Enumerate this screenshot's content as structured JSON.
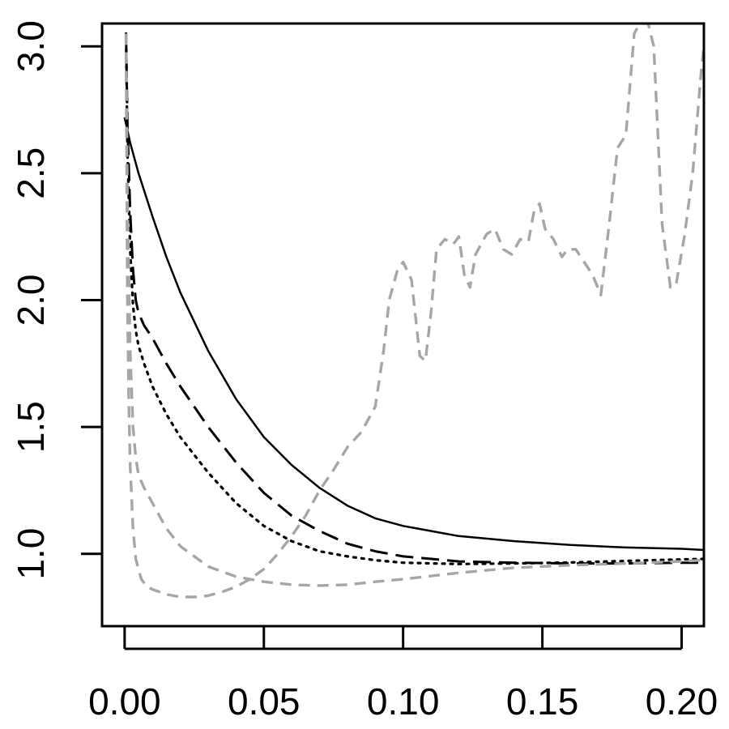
{
  "chart_data": {
    "type": "line",
    "title": "",
    "xlabel": "",
    "ylabel": "",
    "xlim": [
      -0.0081,
      0.208
    ],
    "ylim": [
      0.715,
      3.09
    ],
    "grid": false,
    "legend": "none",
    "x_ticks": [
      0.0,
      0.05,
      0.1,
      0.15,
      0.2
    ],
    "x_tick_labels": [
      "0.00",
      "0.05",
      "0.10",
      "0.15",
      "0.20"
    ],
    "y_ticks": [
      1.0,
      1.5,
      2.0,
      2.5,
      3.0
    ],
    "y_tick_labels": [
      "1.0",
      "1.5",
      "2.0",
      "2.5",
      "3.0"
    ],
    "series": [
      {
        "style": "solid",
        "color": "#000000",
        "x": [
          0.0,
          0.002,
          0.005,
          0.01,
          0.015,
          0.02,
          0.03,
          0.04,
          0.05,
          0.06,
          0.07,
          0.08,
          0.09,
          0.1,
          0.12,
          0.14,
          0.16,
          0.18,
          0.2,
          0.208
        ],
        "y": [
          2.72,
          2.62,
          2.5,
          2.33,
          2.17,
          2.03,
          1.8,
          1.61,
          1.46,
          1.35,
          1.26,
          1.19,
          1.14,
          1.11,
          1.07,
          1.05,
          1.035,
          1.025,
          1.02,
          1.015
        ]
      },
      {
        "style": "longdash",
        "color": "#000000",
        "x": [
          0.0005,
          0.001,
          0.002,
          0.003,
          0.004,
          0.005,
          0.007,
          0.01,
          0.015,
          0.02,
          0.03,
          0.04,
          0.05,
          0.06,
          0.07,
          0.08,
          0.09,
          0.1,
          0.12,
          0.14,
          0.16,
          0.18,
          0.2,
          0.208
        ],
        "y": [
          3.05,
          2.7,
          2.35,
          2.12,
          2.0,
          1.95,
          1.9,
          1.85,
          1.75,
          1.66,
          1.5,
          1.36,
          1.24,
          1.15,
          1.09,
          1.04,
          1.01,
          0.99,
          0.97,
          0.965,
          0.962,
          0.962,
          0.965,
          0.965
        ]
      },
      {
        "style": "dotted",
        "color": "#000000",
        "x": [
          0.0005,
          0.001,
          0.002,
          0.003,
          0.004,
          0.005,
          0.007,
          0.01,
          0.015,
          0.02,
          0.03,
          0.04,
          0.05,
          0.06,
          0.07,
          0.08,
          0.09,
          0.1,
          0.12,
          0.14,
          0.16,
          0.18,
          0.2,
          0.208
        ],
        "y": [
          3.05,
          2.6,
          2.2,
          1.98,
          1.88,
          1.82,
          1.75,
          1.66,
          1.55,
          1.46,
          1.32,
          1.2,
          1.11,
          1.05,
          1.01,
          0.99,
          0.975,
          0.965,
          0.96,
          0.962,
          0.966,
          0.972,
          0.978,
          0.98
        ]
      },
      {
        "style": "dashed",
        "color": "#a6a6a6",
        "x": [
          0.0005,
          0.001,
          0.002,
          0.003,
          0.004,
          0.005,
          0.007,
          0.01,
          0.015,
          0.02,
          0.03,
          0.04,
          0.05,
          0.06,
          0.07,
          0.08,
          0.09,
          0.1,
          0.12,
          0.14,
          0.16,
          0.18,
          0.2,
          0.208
        ],
        "y": [
          3.05,
          2.4,
          1.8,
          1.5,
          1.38,
          1.31,
          1.26,
          1.2,
          1.1,
          1.03,
          0.95,
          0.91,
          0.89,
          0.878,
          0.875,
          0.878,
          0.89,
          0.9,
          0.925,
          0.945,
          0.955,
          0.962,
          0.97,
          0.975
        ]
      },
      {
        "style": "dashed",
        "color": "#a6a6a6",
        "x": [
          0.0005,
          0.001,
          0.0015,
          0.002,
          0.003,
          0.004,
          0.006,
          0.008,
          0.01,
          0.015,
          0.02,
          0.025,
          0.03,
          0.035,
          0.04,
          0.045,
          0.05,
          0.055,
          0.06,
          0.065,
          0.07,
          0.075,
          0.08,
          0.085,
          0.09,
          0.093,
          0.095,
          0.098,
          0.1,
          0.103,
          0.106,
          0.108,
          0.11,
          0.112,
          0.115,
          0.118,
          0.12,
          0.122,
          0.124,
          0.126,
          0.128,
          0.13,
          0.133,
          0.136,
          0.139,
          0.142,
          0.145,
          0.147,
          0.149,
          0.151,
          0.154,
          0.157,
          0.159,
          0.162,
          0.165,
          0.168,
          0.171,
          0.174,
          0.177,
          0.18,
          0.183,
          0.185,
          0.188,
          0.19,
          0.193,
          0.196,
          0.198,
          0.201,
          0.204,
          0.207,
          0.208
        ],
        "y": [
          3.05,
          2.0,
          1.6,
          1.35,
          1.1,
          0.98,
          0.9,
          0.87,
          0.86,
          0.84,
          0.83,
          0.83,
          0.835,
          0.85,
          0.87,
          0.9,
          0.94,
          1.0,
          1.07,
          1.15,
          1.25,
          1.33,
          1.42,
          1.48,
          1.58,
          1.8,
          2.0,
          2.12,
          2.15,
          2.08,
          1.78,
          1.76,
          1.95,
          2.2,
          2.24,
          2.22,
          2.25,
          2.1,
          2.05,
          2.18,
          2.22,
          2.26,
          2.28,
          2.2,
          2.18,
          2.24,
          2.23,
          2.35,
          2.38,
          2.28,
          2.24,
          2.17,
          2.2,
          2.2,
          2.15,
          2.1,
          2.02,
          2.3,
          2.6,
          2.65,
          3.05,
          3.09,
          3.09,
          3.0,
          2.3,
          2.05,
          2.06,
          2.25,
          2.5,
          2.9,
          3.0
        ]
      }
    ]
  }
}
